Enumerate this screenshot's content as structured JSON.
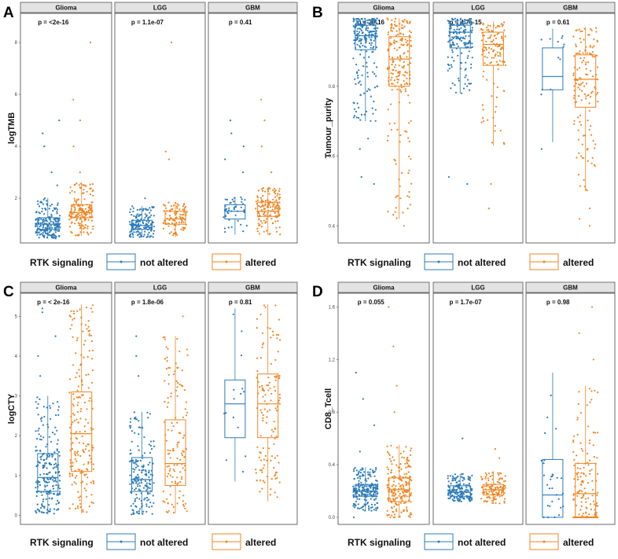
{
  "legend": {
    "title": "RTK signaling",
    "not_altered": "not altered",
    "altered": "altered"
  },
  "colors": {
    "not_altered": "#2b7bba",
    "altered": "#f28522"
  },
  "chart_data": [
    {
      "type": "box",
      "letter": "A",
      "ylabel": "logTMB",
      "ylim": [
        0.4,
        9
      ],
      "yticks": [
        {
          "label": "2",
          "v": 2
        },
        {
          "label": "4",
          "v": 4
        },
        {
          "label": "6",
          "v": 6
        },
        {
          "label": "8",
          "v": 8
        }
      ],
      "panels": [
        {
          "name": "Glioma",
          "pvalue": "p = <2e-16",
          "not_altered": {
            "q1": 0.8,
            "median": 1.0,
            "q3": 1.25,
            "wlo": 0.45,
            "whi": 2.0,
            "outliers": [
              2.5,
              3.0,
              4.0,
              4.5,
              5.0
            ],
            "n": 200
          },
          "altered": {
            "q1": 1.25,
            "median": 1.45,
            "q3": 1.75,
            "wlo": 0.55,
            "whi": 2.6,
            "outliers": [
              3.0,
              4.0,
              5.0,
              5.8,
              8.0
            ],
            "n": 170
          }
        },
        {
          "name": "LGG",
          "pvalue": "p = 1.1e-07",
          "not_altered": {
            "q1": 0.8,
            "median": 0.95,
            "q3": 1.15,
            "wlo": 0.5,
            "whi": 1.7,
            "outliers": [
              2.0
            ],
            "n": 160
          },
          "altered": {
            "q1": 1.0,
            "median": 1.2,
            "q3": 1.5,
            "wlo": 0.5,
            "whi": 1.85,
            "outliers": [
              3.5,
              3.8,
              8.0
            ],
            "n": 100
          }
        },
        {
          "name": "GBM",
          "pvalue": "p = 0.41",
          "not_altered": {
            "q1": 1.2,
            "median": 1.5,
            "q3": 1.75,
            "wlo": 0.6,
            "whi": 2.05,
            "outliers": [
              3.0,
              3.5,
              4.0,
              4.5,
              5.0
            ],
            "n": 45
          },
          "altered": {
            "q1": 1.3,
            "median": 1.5,
            "q3": 1.85,
            "wlo": 0.6,
            "whi": 2.4,
            "outliers": [
              3.0,
              4.0,
              5.0,
              5.8
            ],
            "n": 150
          }
        }
      ]
    },
    {
      "type": "box",
      "letter": "B",
      "ylabel": "Tumour_purity",
      "ylim": [
        0.36,
        1.0
      ],
      "yticks": [
        {
          "label": "0.4",
          "v": 0.4
        },
        {
          "label": "0.6",
          "v": 0.6
        },
        {
          "label": "0.8",
          "v": 0.8
        }
      ],
      "panels": [
        {
          "name": "Glioma",
          "pvalue": "p = 2e-16",
          "not_altered": {
            "q1": 0.905,
            "median": 0.945,
            "q3": 0.975,
            "wlo": 0.7,
            "whi": 0.995,
            "outliers": [
              0.62,
              0.65,
              0.52,
              0.54
            ],
            "n": 220
          },
          "altered": {
            "q1": 0.8,
            "median": 0.878,
            "q3": 0.942,
            "wlo": 0.42,
            "whi": 0.995,
            "outliers": [
              0.4,
              0.45
            ],
            "n": 200
          }
        },
        {
          "name": "LGG",
          "pvalue": "p = 4.7e-15",
          "not_altered": {
            "q1": 0.91,
            "median": 0.955,
            "q3": 0.975,
            "wlo": 0.78,
            "whi": 0.995,
            "outliers": [
              0.52,
              0.54
            ],
            "n": 170
          },
          "altered": {
            "q1": 0.86,
            "median": 0.92,
            "q3": 0.955,
            "wlo": 0.63,
            "whi": 0.985,
            "outliers": [
              0.45,
              0.52
            ],
            "n": 120
          }
        },
        {
          "name": "GBM",
          "pvalue": "p = 0.61",
          "not_altered": {
            "q1": 0.79,
            "median": 0.828,
            "q3": 0.91,
            "wlo": 0.64,
            "whi": 0.965,
            "outliers": [
              0.62
            ],
            "n": 12
          },
          "altered": {
            "q1": 0.74,
            "median": 0.82,
            "q3": 0.89,
            "wlo": 0.5,
            "whi": 0.97,
            "outliers": [
              0.4,
              0.42,
              0.45
            ],
            "n": 140
          }
        }
      ]
    },
    {
      "type": "box",
      "letter": "C",
      "ylabel": "logCTY",
      "ylim": [
        -0.15,
        5.5
      ],
      "yticks": [
        {
          "label": "0",
          "v": 0
        },
        {
          "label": "1",
          "v": 1
        },
        {
          "label": "2",
          "v": 2
        },
        {
          "label": "3",
          "v": 3
        },
        {
          "label": "4",
          "v": 4
        },
        {
          "label": "5",
          "v": 5
        }
      ],
      "panels": [
        {
          "name": "Glioma",
          "pvalue": "p = < 2e-16",
          "not_altered": {
            "q1": 0.6,
            "median": 0.95,
            "q3": 1.55,
            "wlo": 0.02,
            "whi": 3.0,
            "outliers": [
              3.5,
              4.0,
              4.5,
              5.1,
              5.2
            ],
            "n": 220
          },
          "altered": {
            "q1": 1.1,
            "median": 2.05,
            "q3": 3.1,
            "wlo": 0.05,
            "whi": 5.3,
            "outliers": [],
            "n": 200
          }
        },
        {
          "name": "LGG",
          "pvalue": "p = 1.8e-06",
          "not_altered": {
            "q1": 0.6,
            "median": 0.9,
            "q3": 1.45,
            "wlo": 0.02,
            "whi": 2.6,
            "outliers": [
              3.5,
              4.0,
              4.5
            ],
            "n": 180
          },
          "altered": {
            "q1": 0.75,
            "median": 1.3,
            "q3": 2.4,
            "wlo": 0.05,
            "whi": 4.5,
            "outliers": [
              5.0
            ],
            "n": 130
          }
        },
        {
          "name": "GBM",
          "pvalue": "p = 0.81",
          "not_altered": {
            "q1": 1.95,
            "median": 2.8,
            "q3": 3.4,
            "wlo": 0.85,
            "whi": 5.2,
            "outliers": [],
            "n": 15
          },
          "altered": {
            "q1": 1.95,
            "median": 2.8,
            "q3": 3.55,
            "wlo": 0.35,
            "whi": 5.3,
            "outliers": [],
            "n": 130
          }
        }
      ]
    },
    {
      "type": "box",
      "letter": "D",
      "ylabel": "CD8_Tcell",
      "ylim": [
        -0.03,
        1.68
      ],
      "yticks": [
        {
          "label": "0.0",
          "v": 0.0
        },
        {
          "label": "0.4",
          "v": 0.4
        },
        {
          "label": "0.8",
          "v": 0.8
        },
        {
          "label": "1.2",
          "v": 1.2
        },
        {
          "label": "1.6",
          "v": 1.6
        }
      ],
      "panels": [
        {
          "name": "Glioma",
          "pvalue": "p = 0.055",
          "not_altered": {
            "q1": 0.16,
            "median": 0.2,
            "q3": 0.25,
            "wlo": 0.05,
            "whi": 0.38,
            "outliers": [
              0.0,
              0.5,
              0.7,
              0.9,
              1.1
            ],
            "n": 220
          },
          "altered": {
            "q1": 0.12,
            "median": 0.21,
            "q3": 0.3,
            "wlo": 0.0,
            "whi": 0.55,
            "outliers": [
              0.8,
              1.0,
              1.3,
              1.6
            ],
            "n": 200
          }
        },
        {
          "name": "LGG",
          "pvalue": "p = 1.7e-07",
          "not_altered": {
            "q1": 0.16,
            "median": 0.19,
            "q3": 0.24,
            "wlo": 0.12,
            "whi": 0.33,
            "outliers": [
              0.6
            ],
            "n": 170
          },
          "altered": {
            "q1": 0.17,
            "median": 0.21,
            "q3": 0.25,
            "wlo": 0.1,
            "whi": 0.35,
            "outliers": [
              0.45,
              0.52
            ],
            "n": 120
          }
        },
        {
          "name": "GBM",
          "pvalue": "p = 0.98",
          "not_altered": {
            "q1": 0.0,
            "median": 0.17,
            "q3": 0.44,
            "wlo": 0.0,
            "whi": 1.1,
            "outliers": [],
            "n": 30
          },
          "altered": {
            "q1": 0.0,
            "median": 0.18,
            "q3": 0.41,
            "wlo": 0.0,
            "whi": 1.0,
            "outliers": [
              1.2,
              1.4,
              1.6
            ],
            "n": 170
          }
        }
      ]
    }
  ]
}
